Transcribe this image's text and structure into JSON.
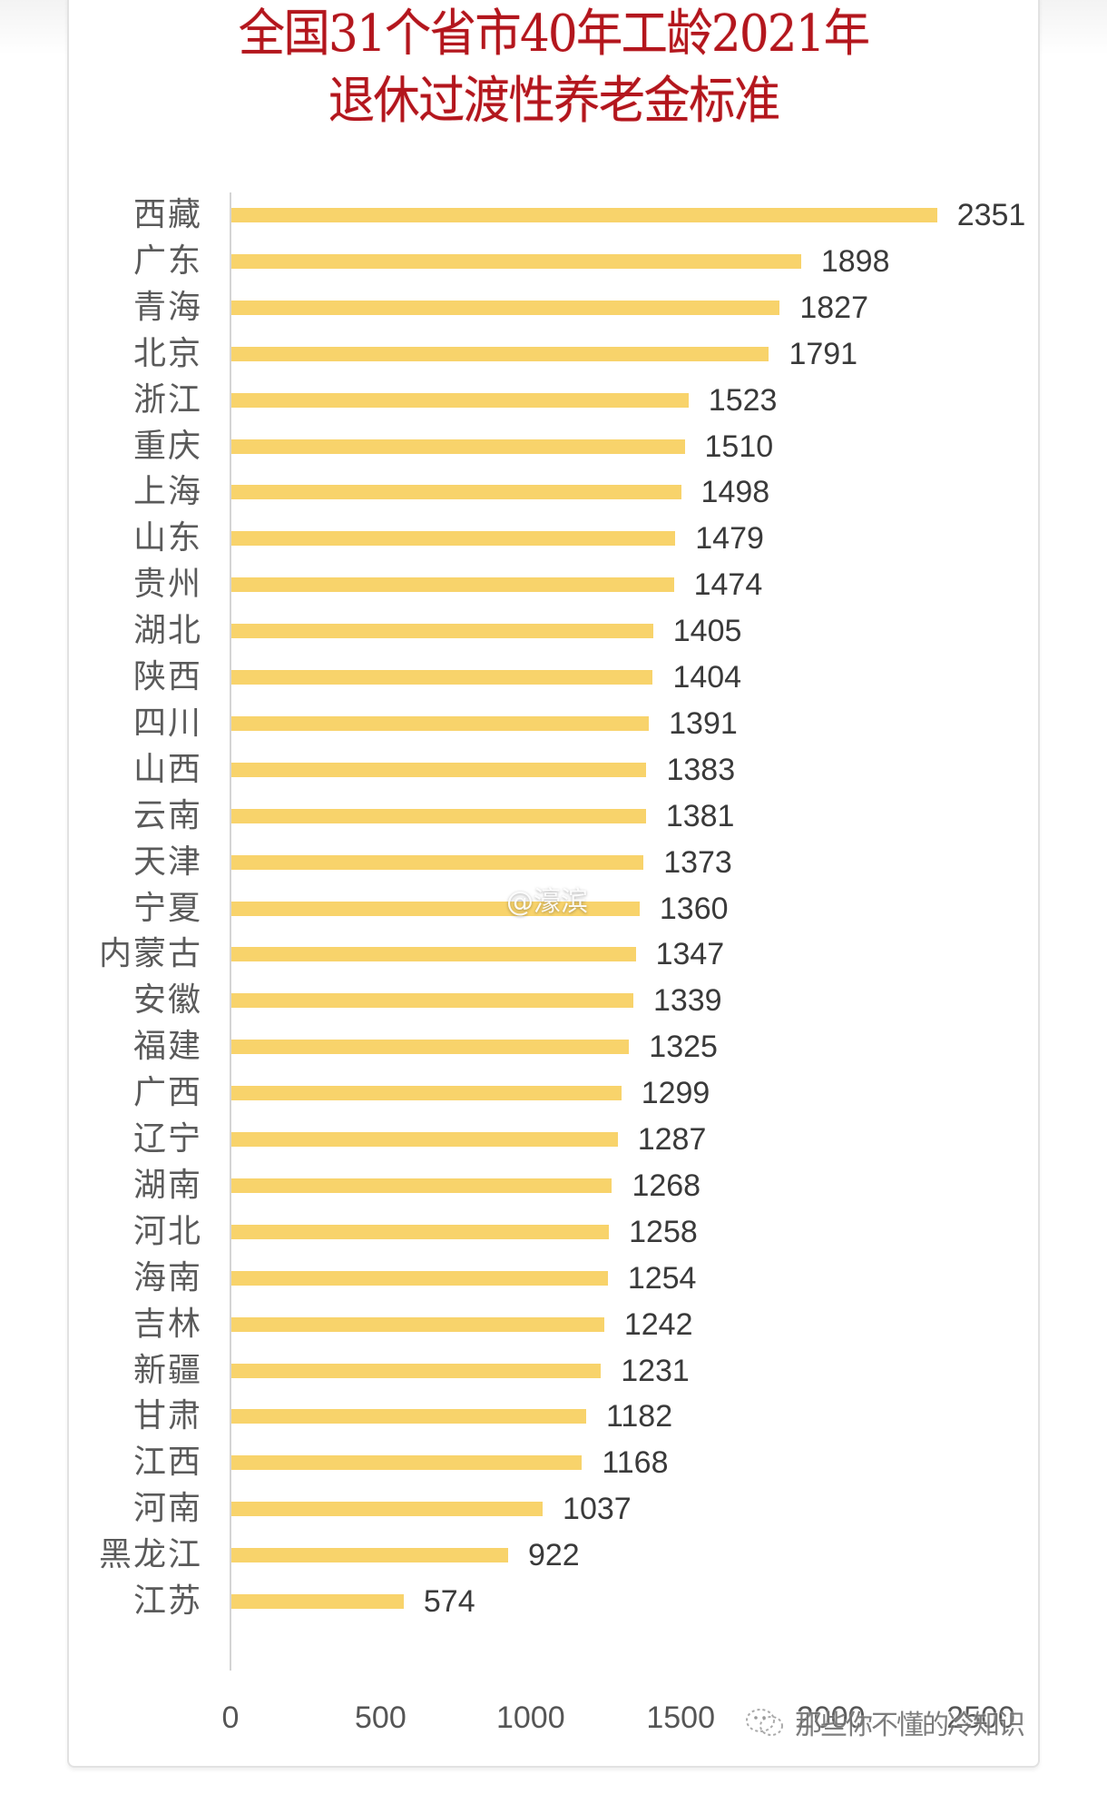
{
  "title": {
    "line1": "全国31个省市40年工龄2021年",
    "line2": "退休过渡性养老金标准"
  },
  "watermarks": {
    "center": "@濠滨",
    "bottom_right": "那些你不懂的冷知识",
    "bottom_right_icon": "wechat-icon"
  },
  "colors": {
    "title": "#b3161d",
    "bar": "#f8d36b",
    "axis": "#d4d4d4",
    "label": "#5a5a5a",
    "value": "#3a3a3a"
  },
  "chart_data": {
    "type": "bar",
    "orientation": "horizontal",
    "title": "全国31个省市40年工龄2021年退休过渡性养老金标准",
    "xlabel": "",
    "ylabel": "",
    "xlim": [
      0,
      2500
    ],
    "x_ticks": [
      0,
      500,
      1000,
      1500,
      2000,
      2500
    ],
    "grid": false,
    "legend": null,
    "data_labels": true,
    "categories": [
      "西藏",
      "广东",
      "青海",
      "北京",
      "浙江",
      "重庆",
      "上海",
      "山东",
      "贵州",
      "湖北",
      "陕西",
      "四川",
      "山西",
      "云南",
      "天津",
      "宁夏",
      "内蒙古",
      "安徽",
      "福建",
      "广西",
      "辽宁",
      "湖南",
      "河北",
      "海南",
      "吉林",
      "新疆",
      "甘肃",
      "江西",
      "河南",
      "黑龙江",
      "江苏"
    ],
    "values": [
      2351,
      1898,
      1827,
      1791,
      1523,
      1510,
      1498,
      1479,
      1474,
      1405,
      1404,
      1391,
      1383,
      1381,
      1373,
      1360,
      1347,
      1339,
      1325,
      1299,
      1287,
      1268,
      1258,
      1254,
      1242,
      1231,
      1182,
      1168,
      1037,
      922,
      574
    ]
  }
}
